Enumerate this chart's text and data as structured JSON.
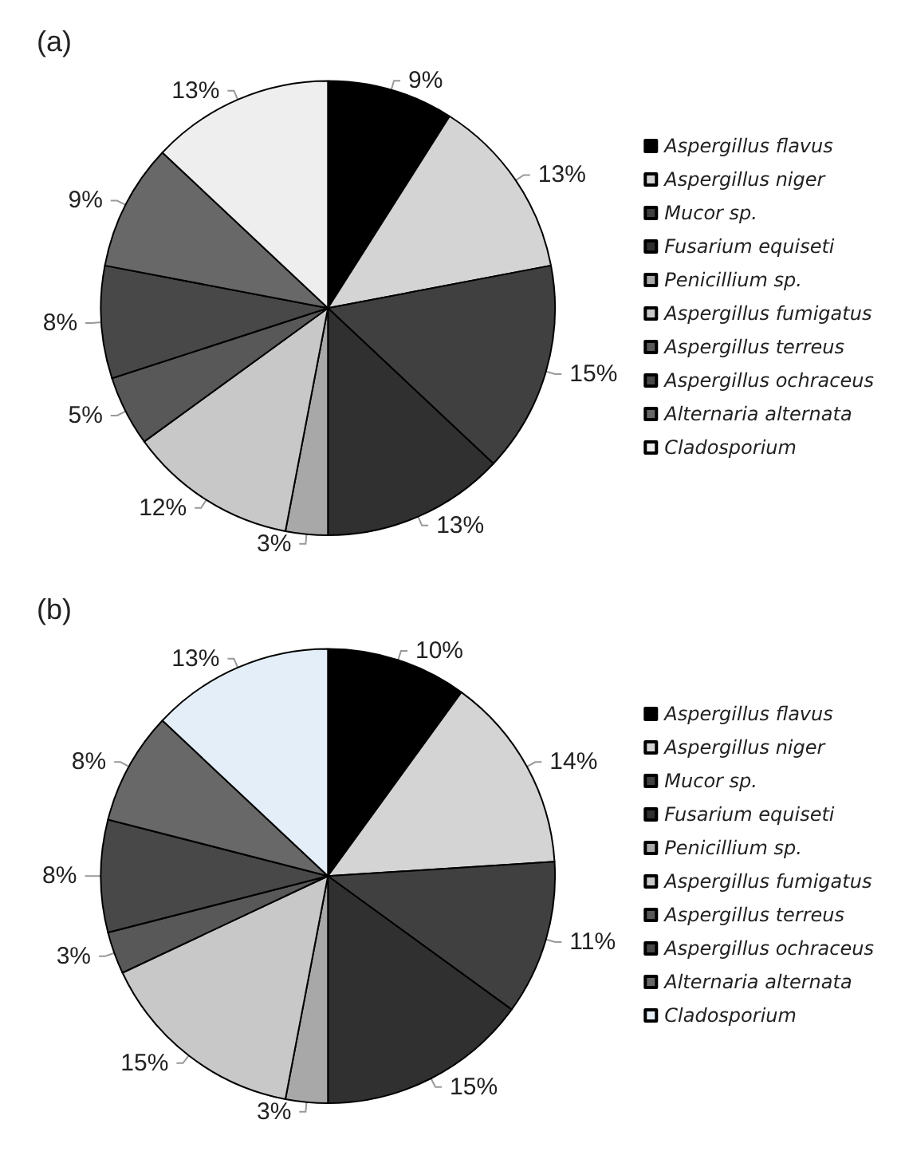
{
  "chart_data": [
    {
      "type": "pie",
      "title": "(a)",
      "categories": [
        "Aspergillus flavus",
        "Aspergillus niger",
        "Mucor sp.",
        "Fusarium equiseti",
        "Penicillium sp.",
        "Aspergillus fumigatus",
        "Aspergillus terreus",
        "Aspergillus ochraceus",
        "Alternaria alternata",
        "Cladosporium"
      ],
      "values": [
        9,
        13,
        15,
        13,
        3,
        12,
        5,
        8,
        9,
        13
      ],
      "value_labels": [
        "9%",
        "13%",
        "15%",
        "13%",
        "3%",
        "12%",
        "5%",
        "8%",
        "9%",
        "13%"
      ],
      "colors": [
        "#000000",
        "#d4d4d4",
        "#404040",
        "#303030",
        "#a8a8a8",
        "#c8c8c8",
        "#585858",
        "#484848",
        "#686868",
        "#eeeeee"
      ],
      "legend": "right"
    },
    {
      "type": "pie",
      "title": "(b)",
      "categories": [
        "Aspergillus flavus",
        "Aspergillus niger",
        "Mucor sp.",
        "Fusarium equiseti",
        "Penicillium sp.",
        "Aspergillus fumigatus",
        "Aspergillus terreus",
        "Aspergillus ochraceus",
        "Alternaria alternata",
        "Cladosporium"
      ],
      "values": [
        10,
        14,
        11,
        15,
        3,
        15,
        3,
        8,
        8,
        13
      ],
      "value_labels": [
        "10%",
        "14%",
        "11%",
        "15%",
        "3%",
        "15%",
        "3%",
        "8%",
        "8%",
        "13%"
      ],
      "colors": [
        "#000000",
        "#d4d4d4",
        "#404040",
        "#303030",
        "#a8a8a8",
        "#c8c8c8",
        "#585858",
        "#484848",
        "#686868",
        "#e4eef8"
      ],
      "legend": "right"
    }
  ]
}
